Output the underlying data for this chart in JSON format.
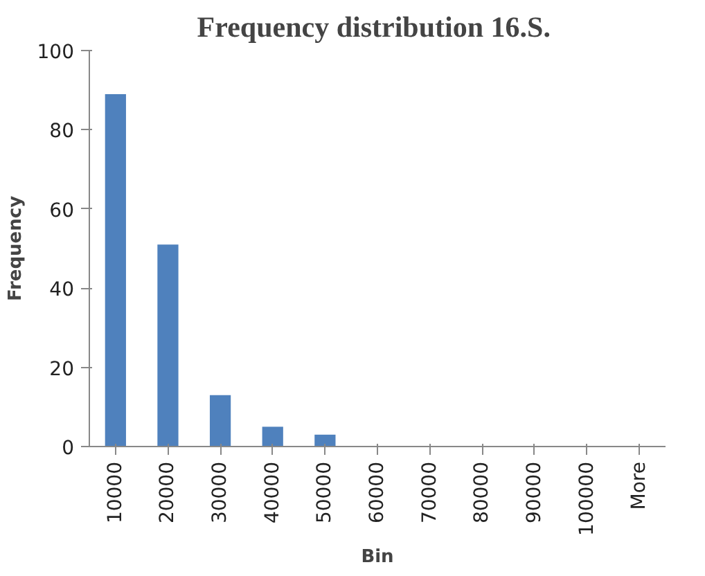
{
  "chart_data": {
    "type": "bar",
    "title": "Frequency distribution  16.S.",
    "xlabel": "Bin",
    "ylabel": "Frequency",
    "categories": [
      "10000",
      "20000",
      "30000",
      "40000",
      "50000",
      "60000",
      "70000",
      "80000",
      "90000",
      "100000",
      "More"
    ],
    "values": [
      89,
      51,
      13,
      5,
      3,
      0,
      0,
      0,
      0,
      0,
      0
    ],
    "color": "#4f81bd",
    "ylim": [
      0,
      100
    ],
    "yticks": [
      0,
      20,
      40,
      60,
      80,
      100
    ],
    "grid": false
  }
}
